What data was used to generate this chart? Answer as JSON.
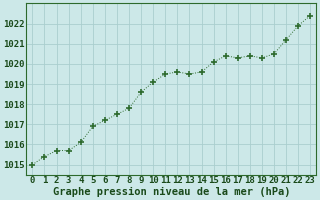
{
  "x": [
    0,
    1,
    2,
    3,
    4,
    5,
    6,
    7,
    8,
    9,
    10,
    11,
    12,
    13,
    14,
    15,
    16,
    17,
    18,
    19,
    20,
    21,
    22,
    23
  ],
  "y": [
    1015.0,
    1015.4,
    1015.7,
    1015.7,
    1016.1,
    1016.9,
    1017.2,
    1017.5,
    1017.8,
    1018.6,
    1019.1,
    1019.5,
    1019.6,
    1019.5,
    1019.6,
    1020.1,
    1020.4,
    1020.3,
    1020.4,
    1020.3,
    1020.5,
    1021.2,
    1021.9,
    1022.4
  ],
  "line_color": "#2d6a2d",
  "marker": "+",
  "marker_size": 4,
  "marker_linewidth": 1.2,
  "line_linewidth": 0.7,
  "bg_color": "#cce8e8",
  "grid_color": "#aacece",
  "xlabel": "Graphe pression niveau de la mer (hPa)",
  "xlabel_color": "#1a4a1a",
  "xlabel_fontsize": 7.5,
  "tick_color": "#1a4a1a",
  "tick_fontsize": 6.5,
  "ylim": [
    1014.5,
    1023.0
  ],
  "yticks": [
    1015,
    1016,
    1017,
    1018,
    1019,
    1020,
    1021,
    1022
  ],
  "xlim": [
    -0.5,
    23.5
  ],
  "xticks": [
    0,
    1,
    2,
    3,
    4,
    5,
    6,
    7,
    8,
    9,
    10,
    11,
    12,
    13,
    14,
    15,
    16,
    17,
    18,
    19,
    20,
    21,
    22,
    23
  ],
  "spine_color": "#2d6a2d",
  "linestyle": "dotted"
}
